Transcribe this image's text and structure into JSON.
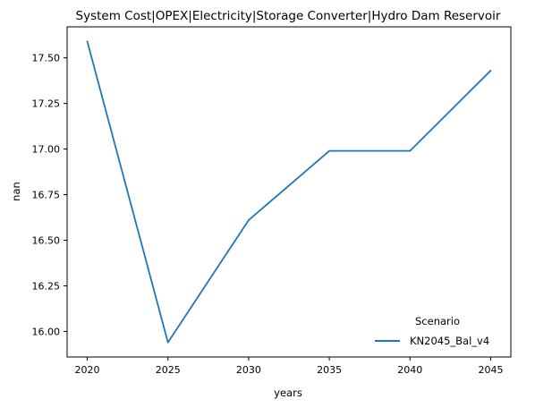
{
  "chart_data": {
    "type": "line",
    "title": "System Cost|OPEX|Electricity|Storage Converter|Hydro Dam Reservoir",
    "xlabel": "years",
    "ylabel": "nan",
    "x": [
      2020,
      2025,
      2030,
      2035,
      2040,
      2045
    ],
    "xticks": [
      2020,
      2025,
      2030,
      2035,
      2040,
      2045
    ],
    "yticks": [
      16.0,
      16.25,
      16.5,
      16.75,
      17.0,
      17.25,
      17.5
    ],
    "xlim": [
      2018.75,
      2046.25
    ],
    "ylim": [
      15.86,
      17.67
    ],
    "grid": false,
    "legend": {
      "title": "Scenario",
      "placement": "lower right"
    },
    "series": [
      {
        "name": "KN2045_Bal_v4",
        "color": "#1f77b4",
        "values": [
          17.59,
          15.94,
          16.61,
          16.99,
          16.99,
          17.43
        ]
      }
    ]
  }
}
